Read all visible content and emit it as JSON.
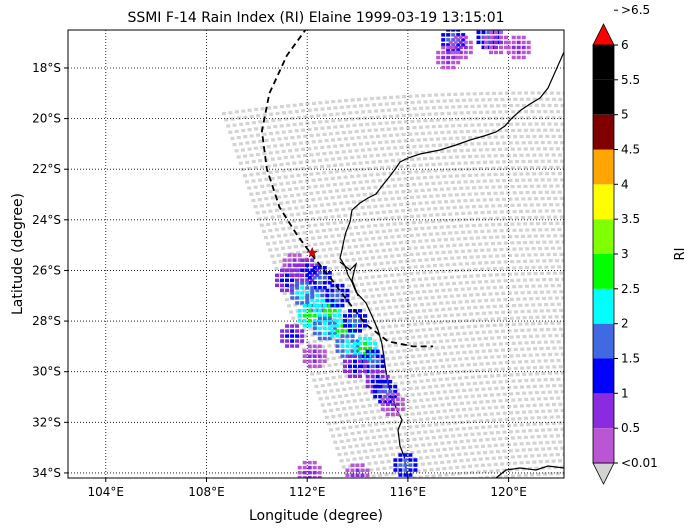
{
  "chart_data": {
    "type": "heatmap",
    "title": "SSMI F-14 Rain Index (RI) Elaine 1999-03-19 13:15:01",
    "xlabel": "Longitude (degree)",
    "ylabel": "Latitude (degree)",
    "xlim": [
      102.5,
      122.2
    ],
    "ylim": [
      -34.2,
      -16.5
    ],
    "x_ticks": [
      104,
      108,
      112,
      116,
      120
    ],
    "x_tick_labels": [
      "104°E",
      "108°E",
      "112°E",
      "116°E",
      "120°E"
    ],
    "y_ticks": [
      -18,
      -20,
      -22,
      -24,
      -26,
      -28,
      -30,
      -32,
      -34
    ],
    "y_tick_labels": [
      "18°S",
      "20°S",
      "22°S",
      "24°S",
      "26°S",
      "28°S",
      "30°S",
      "32°S",
      "34°S"
    ],
    "grid": true,
    "colorbar": {
      "label": "RI",
      "tick_labels": [
        "<0.01",
        "0.5",
        "1",
        "1.5",
        "2",
        "2.5",
        "3",
        "3.5",
        "4",
        "4.5",
        "5",
        "5.5",
        "6",
        ">6.5"
      ],
      "colors": [
        "#d3d3d3",
        "#ba55d3",
        "#8a2be2",
        "#0000ff",
        "#4169e1",
        "#00ffff",
        "#00ff00",
        "#7fff00",
        "#ffff00",
        "#ffa500",
        "#800000",
        "#000000",
        "#000000",
        "#ff0000"
      ]
    },
    "swath_color": "#d3d3d3",
    "rain_cells": [
      {
        "lon": 117.8,
        "lat": -16.9,
        "ri": 1.5
      },
      {
        "lon": 118.1,
        "lat": -17.2,
        "ri": 0.5
      },
      {
        "lon": 117.6,
        "lat": -17.6,
        "ri": 0.5
      },
      {
        "lon": 119.2,
        "lat": -16.8,
        "ri": 1.5
      },
      {
        "lon": 119.5,
        "lat": -17.0,
        "ri": 0.5
      },
      {
        "lon": 120.4,
        "lat": -17.2,
        "ri": 0.5
      },
      {
        "lon": 111.5,
        "lat": -25.8,
        "ri": 0.5
      },
      {
        "lon": 111.2,
        "lat": -26.4,
        "ri": 1.0
      },
      {
        "lon": 112.0,
        "lat": -26.0,
        "ri": 1.0
      },
      {
        "lon": 112.5,
        "lat": -26.3,
        "ri": 1.5
      },
      {
        "lon": 111.8,
        "lat": -26.9,
        "ri": 2.0
      },
      {
        "lon": 112.4,
        "lat": -27.2,
        "ri": 2.0
      },
      {
        "lon": 112.9,
        "lat": -27.6,
        "ri": 2.5
      },
      {
        "lon": 112.1,
        "lat": -27.8,
        "ri": 2.5
      },
      {
        "lon": 113.2,
        "lat": -27.0,
        "ri": 1.5
      },
      {
        "lon": 112.7,
        "lat": -28.3,
        "ri": 2.0
      },
      {
        "lon": 113.4,
        "lat": -28.4,
        "ri": 2.5
      },
      {
        "lon": 113.9,
        "lat": -28.0,
        "ri": 1.5
      },
      {
        "lon": 113.6,
        "lat": -29.0,
        "ri": 2.0
      },
      {
        "lon": 114.3,
        "lat": -29.1,
        "ri": 2.5
      },
      {
        "lon": 114.6,
        "lat": -29.6,
        "ri": 1.5
      },
      {
        "lon": 113.9,
        "lat": -29.8,
        "ri": 1.0
      },
      {
        "lon": 114.8,
        "lat": -30.4,
        "ri": 1.0
      },
      {
        "lon": 115.1,
        "lat": -30.8,
        "ri": 1.5
      },
      {
        "lon": 115.4,
        "lat": -31.3,
        "ri": 0.5
      },
      {
        "lon": 111.4,
        "lat": -28.6,
        "ri": 1.0
      },
      {
        "lon": 112.3,
        "lat": -29.4,
        "ri": 0.5
      },
      {
        "lon": 112.1,
        "lat": -34.0,
        "ri": 0.5
      },
      {
        "lon": 114.0,
        "lat": -34.1,
        "ri": 0.5
      },
      {
        "lon": 115.9,
        "lat": -33.7,
        "ri": 1.5
      }
    ],
    "best_track": [
      [
        112.0,
        -16.4
      ],
      [
        111.2,
        -17.5
      ],
      [
        110.5,
        -19.0
      ],
      [
        110.2,
        -20.5
      ],
      [
        110.4,
        -22.0
      ],
      [
        110.9,
        -23.5
      ],
      [
        111.6,
        -24.6
      ],
      [
        112.2,
        -25.4
      ],
      [
        113.0,
        -26.4
      ],
      [
        113.6,
        -27.2
      ],
      [
        114.3,
        -28.1
      ],
      [
        115.2,
        -28.8
      ],
      [
        116.2,
        -29.0
      ],
      [
        117.0,
        -29.0
      ]
    ],
    "storm_position": {
      "lon": 112.2,
      "lat": -25.3
    }
  }
}
